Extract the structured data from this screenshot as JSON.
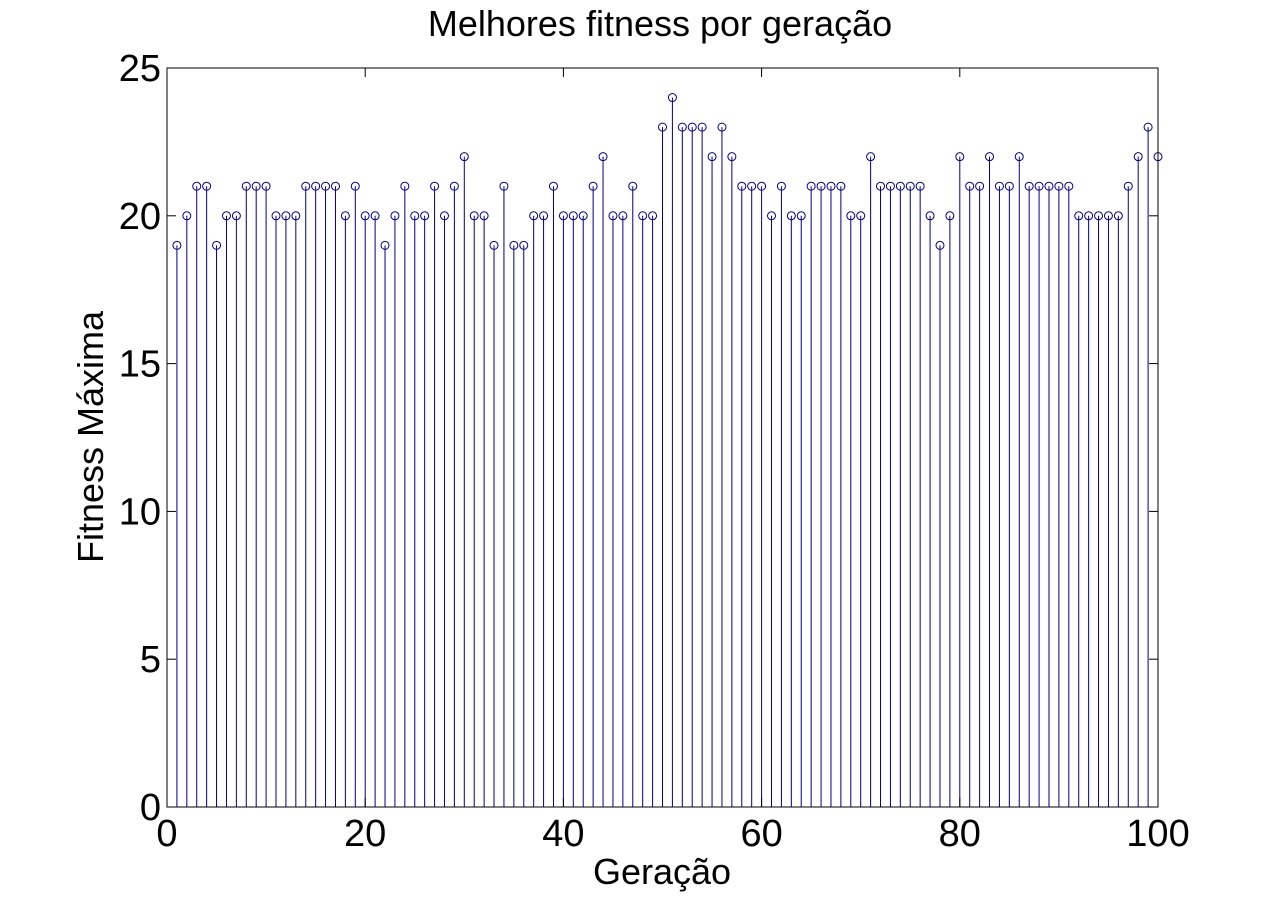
{
  "chart_data": {
    "type": "stem",
    "title": "Melhores fitness por geração",
    "xlabel": "Geração",
    "ylabel": "Fitness Máxima",
    "xlim": [
      0,
      100
    ],
    "ylim": [
      0,
      25
    ],
    "xticks": [
      "0",
      "20",
      "40",
      "60",
      "80",
      "100"
    ],
    "yticks": [
      "0",
      "5",
      "10",
      "15",
      "20",
      "25"
    ],
    "grid": false,
    "color": "#00008b",
    "x": [
      1,
      2,
      3,
      4,
      5,
      6,
      7,
      8,
      9,
      10,
      11,
      12,
      13,
      14,
      15,
      16,
      17,
      18,
      19,
      20,
      21,
      22,
      23,
      24,
      25,
      26,
      27,
      28,
      29,
      30,
      31,
      32,
      33,
      34,
      35,
      36,
      37,
      38,
      39,
      40,
      41,
      42,
      43,
      44,
      45,
      46,
      47,
      48,
      49,
      50,
      51,
      52,
      53,
      54,
      55,
      56,
      57,
      58,
      59,
      60,
      61,
      62,
      63,
      64,
      65,
      66,
      67,
      68,
      69,
      70,
      71,
      72,
      73,
      74,
      75,
      76,
      77,
      78,
      79,
      80,
      81,
      82,
      83,
      84,
      85,
      86,
      87,
      88,
      89,
      90,
      91,
      92,
      93,
      94,
      95,
      96,
      97,
      98,
      99,
      100
    ],
    "values": [
      19,
      20,
      21,
      21,
      19,
      20,
      20,
      21,
      21,
      21,
      20,
      20,
      20,
      21,
      21,
      21,
      21,
      20,
      21,
      20,
      20,
      19,
      20,
      21,
      20,
      20,
      21,
      20,
      21,
      22,
      20,
      20,
      19,
      21,
      19,
      19,
      20,
      20,
      21,
      20,
      20,
      20,
      21,
      22,
      20,
      20,
      21,
      20,
      20,
      23,
      24,
      23,
      23,
      23,
      22,
      23,
      22,
      21,
      21,
      21,
      20,
      21,
      20,
      20,
      21,
      21,
      21,
      21,
      20,
      20,
      22,
      21,
      21,
      21,
      21,
      21,
      20,
      19,
      20,
      22,
      21,
      21,
      22,
      21,
      21,
      22,
      21,
      21,
      21,
      21,
      21,
      20,
      20,
      20,
      20,
      20,
      21,
      22,
      23,
      22
    ]
  }
}
